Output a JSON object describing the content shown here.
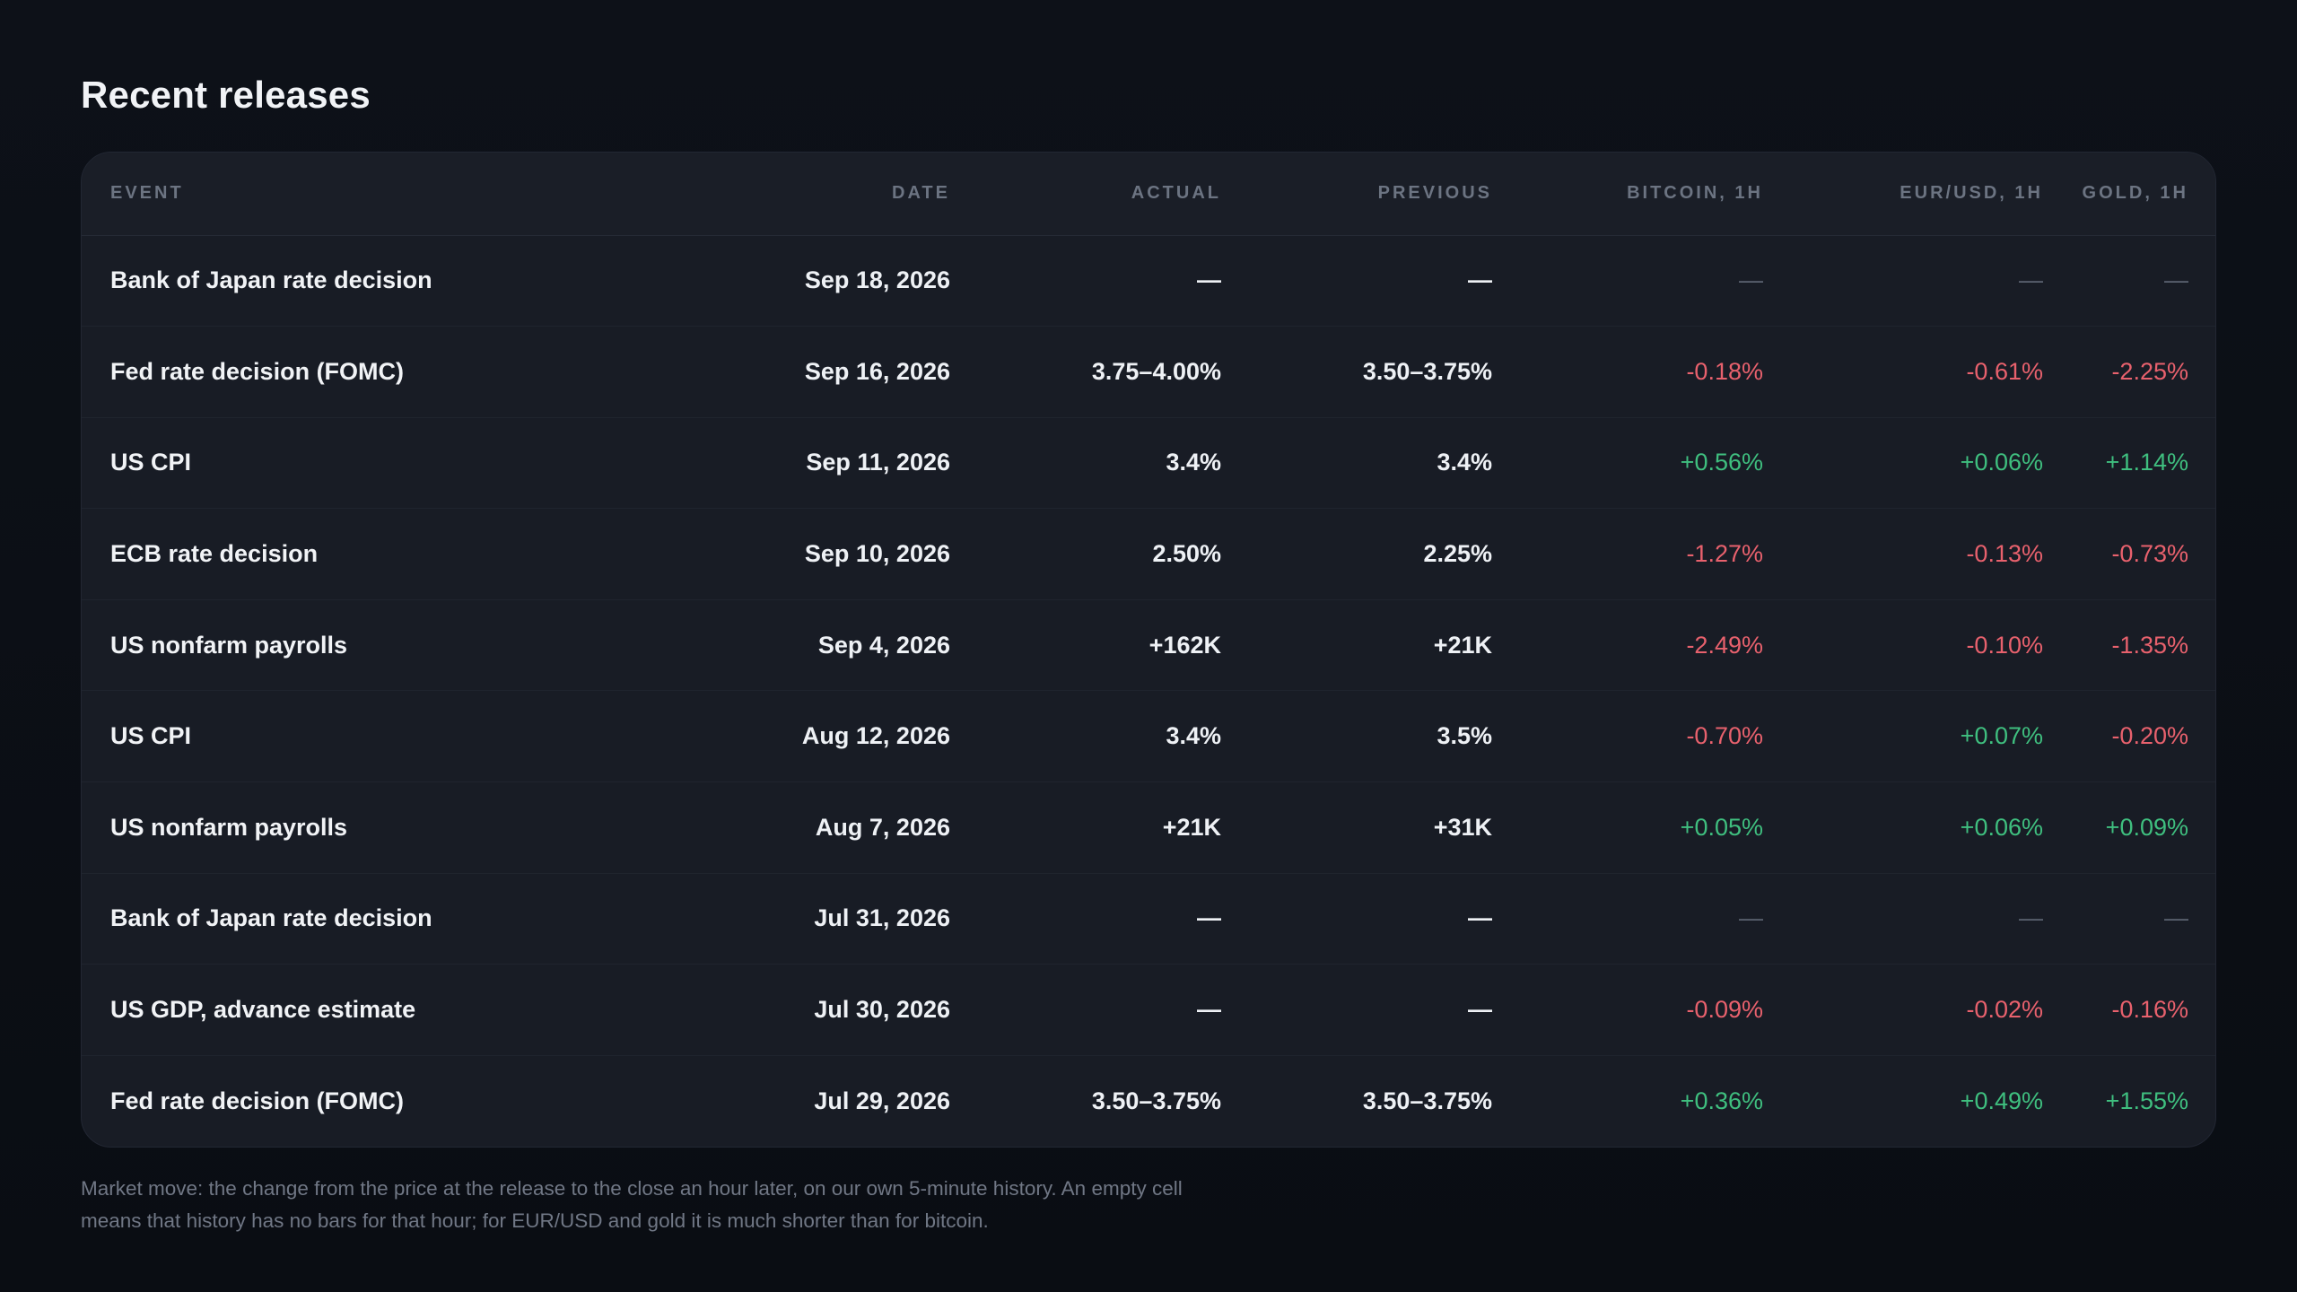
{
  "title": "Recent releases",
  "columns": [
    "EVENT",
    "DATE",
    "ACTUAL",
    "PREVIOUS",
    "BITCOIN, 1H",
    "EUR/USD, 1H",
    "GOLD, 1H"
  ],
  "rows": [
    {
      "event": "Bank of Japan rate decision",
      "date": "Sep 18, 2026",
      "actual": "—",
      "previous": "—",
      "btc": "—",
      "eur": "—",
      "gold": "—"
    },
    {
      "event": "Fed rate decision (FOMC)",
      "date": "Sep 16, 2026",
      "actual": "3.75–4.00%",
      "previous": "3.50–3.75%",
      "btc": "-0.18%",
      "eur": "-0.61%",
      "gold": "-2.25%"
    },
    {
      "event": "US CPI",
      "date": "Sep 11, 2026",
      "actual": "3.4%",
      "previous": "3.4%",
      "btc": "+0.56%",
      "eur": "+0.06%",
      "gold": "+1.14%"
    },
    {
      "event": "ECB rate decision",
      "date": "Sep 10, 2026",
      "actual": "2.50%",
      "previous": "2.25%",
      "btc": "-1.27%",
      "eur": "-0.13%",
      "gold": "-0.73%"
    },
    {
      "event": "US nonfarm payrolls",
      "date": "Sep 4, 2026",
      "actual": "+162K",
      "previous": "+21K",
      "btc": "-2.49%",
      "eur": "-0.10%",
      "gold": "-1.35%"
    },
    {
      "event": "US CPI",
      "date": "Aug 12, 2026",
      "actual": "3.4%",
      "previous": "3.5%",
      "btc": "-0.70%",
      "eur": "+0.07%",
      "gold": "-0.20%"
    },
    {
      "event": "US nonfarm payrolls",
      "date": "Aug 7, 2026",
      "actual": "+21K",
      "previous": "+31K",
      "btc": "+0.05%",
      "eur": "+0.06%",
      "gold": "+0.09%"
    },
    {
      "event": "Bank of Japan rate decision",
      "date": "Jul 31, 2026",
      "actual": "—",
      "previous": "—",
      "btc": "—",
      "eur": "—",
      "gold": "—"
    },
    {
      "event": "US GDP, advance estimate",
      "date": "Jul 30, 2026",
      "actual": "—",
      "previous": "—",
      "btc": "-0.09%",
      "eur": "-0.02%",
      "gold": "-0.16%"
    },
    {
      "event": "Fed rate decision (FOMC)",
      "date": "Jul 29, 2026",
      "actual": "3.50–3.75%",
      "previous": "3.50–3.75%",
      "btc": "+0.36%",
      "eur": "+0.49%",
      "gold": "+1.55%"
    }
  ],
  "footnote": "Market move: the change from the price at the release to the close an hour later, on our own 5-minute history. An empty cell means that history has no bars for that hour; for EUR/USD and gold it is much shorter than for bitcoin.",
  "colors": {
    "positive": "#3fbf7f",
    "negative": "#e8616d",
    "empty": "#5c6472"
  }
}
